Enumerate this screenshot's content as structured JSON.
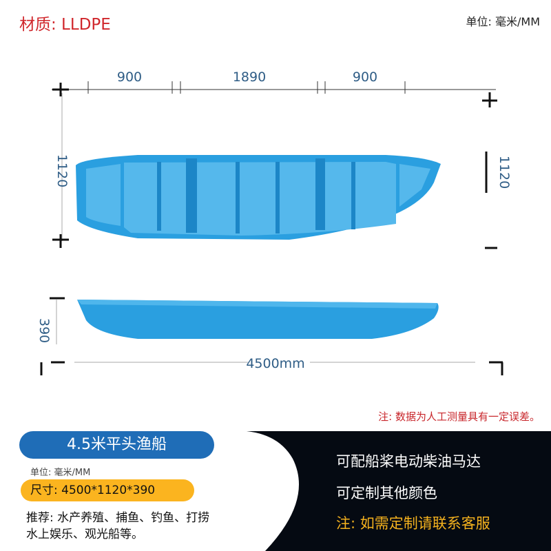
{
  "header": {
    "material": "材质: LLDPE",
    "unit": "单位: 毫米/MM"
  },
  "diagram": {
    "top_view": {
      "segments": [
        "900",
        "1890",
        "900"
      ],
      "width_left": "1120",
      "width_right": "1120"
    },
    "side_view": {
      "height": "390",
      "length": "4500mm"
    },
    "boat_color": "#2a9fe0",
    "dimension_color": "#2f5d86"
  },
  "note": "注: 数据为人工测量具有一定误差。",
  "product": {
    "title": "4.5米平头渔船",
    "unit": "单位: 毫米/MM",
    "size": "尺寸: 4500*1120*390",
    "recommend_line1": "推荐: 水产养殖、捕鱼、钓鱼、打捞",
    "recommend_line2": "水上娱乐、观光船等。"
  },
  "features": {
    "line1": "可配船桨电动柴油马达",
    "line2": "可定制其他颜色",
    "note": "注: 如需定制请联系客服"
  },
  "colors": {
    "title_pill": "#1f6db7",
    "size_pill": "#fbb41f",
    "note_red": "#c8262b",
    "accent_yellow": "#f5b21e",
    "dark_bg": "#050a12"
  }
}
